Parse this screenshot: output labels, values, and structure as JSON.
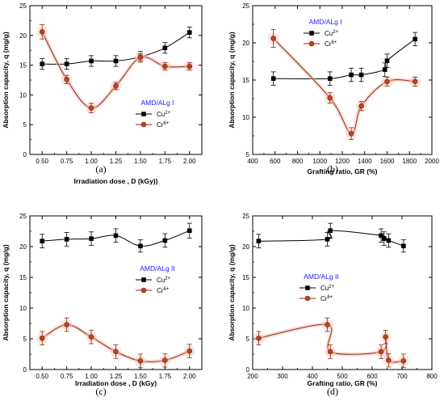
{
  "colors": {
    "cu": "#000000",
    "cr": "#8b2a0c",
    "cr_fill": "#b5451b",
    "legend_title": "#1a1aff",
    "halo": "#f2c3bd"
  },
  "chart_data": [
    {
      "id": "a",
      "type": "line",
      "caption": "(a)",
      "legend_title": "AMD/ALg I",
      "xlabel": "Irradiation dose ,  D (kGy))",
      "ylabel": "Absorption capacity, q (mg/g)",
      "xlim": [
        0.375,
        2.125
      ],
      "ylim": [
        0,
        25
      ],
      "xticks": [
        0.5,
        0.75,
        1.0,
        1.25,
        1.5,
        1.75,
        2.0
      ],
      "xtick_labels": [
        "0.50",
        "0.75",
        "1.00",
        "1.25",
        "1.50",
        "1.75",
        "2.00"
      ],
      "yticks": [
        0,
        5,
        10,
        15,
        20,
        25
      ],
      "legend_position": "right-middle",
      "series": [
        {
          "name": "Cu2+",
          "label_base": "Cu",
          "label_sup": "2+",
          "marker": "square",
          "x": [
            0.5,
            0.75,
            1.0,
            1.25,
            1.5,
            1.75,
            2.0
          ],
          "y": [
            15.2,
            15.2,
            15.7,
            15.7,
            16.4,
            17.9,
            20.5
          ],
          "err": [
            0.9,
            0.9,
            0.9,
            0.9,
            0.9,
            0.9,
            0.9
          ]
        },
        {
          "name": "Cr6+",
          "label_base": "Cr",
          "label_sup": "6+",
          "marker": "circle",
          "x": [
            0.5,
            0.75,
            1.0,
            1.25,
            1.5,
            1.75,
            2.0
          ],
          "y": [
            20.6,
            12.6,
            7.8,
            11.5,
            16.3,
            14.8,
            14.8
          ],
          "err": [
            1.2,
            0.7,
            0.8,
            0.6,
            0.6,
            0.6,
            0.6
          ]
        }
      ]
    },
    {
      "id": "b",
      "type": "line",
      "caption": "(b)",
      "legend_title": "AMD/ALg I",
      "xlabel": "Grafting ratio, GR (%)",
      "ylabel": "Absorption capacity, q (mg/g)",
      "xlim": [
        400,
        2000
      ],
      "ylim": [
        5,
        25
      ],
      "xticks": [
        400,
        600,
        800,
        1000,
        1200,
        1400,
        1600,
        1800,
        2000
      ],
      "xtick_labels": [
        "400",
        "600",
        "800",
        "1000",
        "1200",
        "1400",
        "1600",
        "1800",
        "2000"
      ],
      "yticks": [
        5,
        10,
        15,
        20,
        25
      ],
      "legend_position": "top-center",
      "series": [
        {
          "name": "Cu2+",
          "label_base": "Cu",
          "label_sup": "2+",
          "marker": "square",
          "x": [
            585,
            1090,
            1280,
            1370,
            1580,
            1600,
            1850
          ],
          "y": [
            15.2,
            15.2,
            15.7,
            15.7,
            16.4,
            17.6,
            20.5
          ],
          "err": [
            0.9,
            0.9,
            0.9,
            0.9,
            0.9,
            0.9,
            0.9
          ]
        },
        {
          "name": "Cr6+",
          "label_base": "Cr",
          "label_sup": "6+",
          "marker": "circle",
          "x": [
            585,
            1090,
            1280,
            1370,
            1600,
            1850
          ],
          "y": [
            20.6,
            12.6,
            7.8,
            11.5,
            14.8,
            14.8
          ],
          "err": [
            1.2,
            0.7,
            0.8,
            0.6,
            0.6,
            0.6
          ]
        }
      ]
    },
    {
      "id": "c",
      "type": "line",
      "caption": "(c)",
      "legend_title": "AMD/ALg II",
      "xlabel": "Irradiation dose ,  D (kGy)",
      "ylabel": "Absorption capacity, q (mg/g)",
      "xlim": [
        0.375,
        2.125
      ],
      "ylim": [
        0,
        25
      ],
      "xticks": [
        0.5,
        0.75,
        1.0,
        1.25,
        1.5,
        1.75,
        2.0
      ],
      "xtick_labels": [
        "0.50",
        "0.75",
        "1.00",
        "1.25",
        "1.50",
        "1.75",
        "2.00"
      ],
      "yticks": [
        0,
        5,
        10,
        15,
        20,
        25
      ],
      "legend_position": "center",
      "series": [
        {
          "name": "Cu2+",
          "label_base": "Cu",
          "label_sup": "2+",
          "marker": "square",
          "x": [
            0.5,
            0.75,
            1.0,
            1.25,
            1.5,
            1.75,
            2.0
          ],
          "y": [
            20.9,
            21.2,
            21.3,
            21.8,
            20.1,
            21.0,
            22.6
          ],
          "err": [
            1.1,
            1.1,
            1.1,
            1.1,
            1.0,
            1.1,
            1.2
          ]
        },
        {
          "name": "Cr6+",
          "label_base": "Cr",
          "label_sup": "6+",
          "marker": "circle",
          "x": [
            0.5,
            0.75,
            1.0,
            1.25,
            1.5,
            1.75,
            2.0
          ],
          "y": [
            5.1,
            7.3,
            5.3,
            2.9,
            1.4,
            1.5,
            3.0
          ],
          "err": [
            1.1,
            1.1,
            1.1,
            1.1,
            1.1,
            1.1,
            1.1
          ]
        }
      ]
    },
    {
      "id": "d",
      "type": "line",
      "caption": "(d)",
      "legend_title": "AMD/ALg II",
      "xlabel": "Grafting ratio, GR (%)",
      "ylabel": "Absorption capacity, q (mg/g)",
      "xlim": [
        200,
        800
      ],
      "ylim": [
        0,
        25
      ],
      "xticks": [
        200,
        300,
        400,
        500,
        600,
        700,
        800
      ],
      "xtick_labels": [
        "200",
        "300",
        "400",
        "500",
        "600",
        "700",
        "800"
      ],
      "yticks": [
        0,
        5,
        10,
        15,
        20,
        25
      ],
      "legend_position": "center",
      "series": [
        {
          "name": "Cu2+",
          "label_base": "Cu",
          "label_sup": "2+",
          "marker": "square",
          "x": [
            220,
            450,
            460,
            630,
            640,
            655,
            705
          ],
          "y": [
            20.9,
            21.2,
            22.6,
            21.8,
            21.3,
            21.0,
            20.1
          ],
          "err": [
            1.1,
            1.1,
            1.2,
            1.1,
            1.1,
            1.1,
            1.0
          ]
        },
        {
          "name": "Cr6+",
          "label_base": "Cr",
          "label_sup": "6+",
          "marker": "circle",
          "x": [
            220,
            450,
            460,
            630,
            645,
            655,
            705
          ],
          "y": [
            5.1,
            7.3,
            2.9,
            2.9,
            5.3,
            1.5,
            1.4
          ],
          "err": [
            1.1,
            1.1,
            1.1,
            1.1,
            1.1,
            1.1,
            1.1
          ]
        }
      ]
    }
  ]
}
